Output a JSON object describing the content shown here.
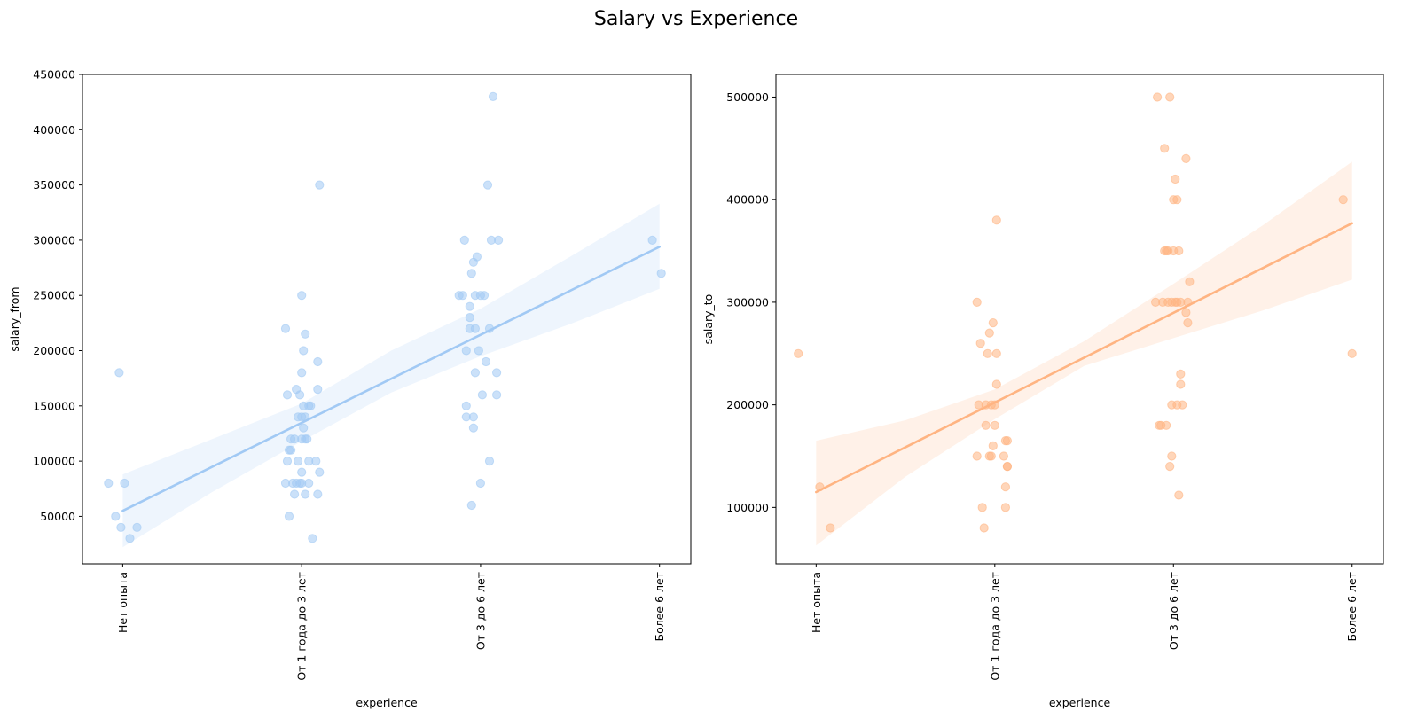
{
  "figure": {
    "title": "Salary vs Experience"
  },
  "chart_data": [
    {
      "type": "scatter",
      "subtype": "regression (regplot) with x-jitter",
      "xlabel": "experience",
      "ylabel": "salary_from",
      "categories": [
        "Нет опыта",
        "От 1 года до 3 лет",
        "От 3 до 6 лет",
        "Более 6 лет"
      ],
      "ylim": [
        7000,
        450000
      ],
      "yticks": [
        50000,
        100000,
        150000,
        200000,
        250000,
        300000,
        350000,
        400000,
        450000
      ],
      "ytick_labels": [
        "50000",
        "100000",
        "150000",
        "200000",
        "250000",
        "300000",
        "350000",
        "400000",
        "450000"
      ],
      "color": "#a1c9f4",
      "grid": false,
      "regression": {
        "x": [
          0,
          3
        ],
        "y": [
          55000,
          294000
        ]
      },
      "confidence_band": {
        "x": [
          0,
          0.5,
          1,
          1.5,
          2,
          2.5,
          3
        ],
        "upper": [
          88000,
          120000,
          152000,
          200000,
          238000,
          285000,
          333000
        ],
        "lower": [
          22000,
          72000,
          118000,
          162000,
          195000,
          224000,
          256000
        ]
      },
      "points": [
        [
          -0.08,
          80000
        ],
        [
          -0.02,
          180000
        ],
        [
          0.01,
          80000
        ],
        [
          -0.04,
          50000
        ],
        [
          -0.01,
          40000
        ],
        [
          0.08,
          40000
        ],
        [
          0.04,
          30000
        ],
        [
          0.91,
          220000
        ],
        [
          0.92,
          160000
        ],
        [
          0.93,
          110000
        ],
        [
          0.92,
          100000
        ],
        [
          0.91,
          80000
        ],
        [
          0.93,
          50000
        ],
        [
          0.95,
          80000
        ],
        [
          0.96,
          120000
        ],
        [
          0.97,
          80000
        ],
        [
          0.98,
          140000
        ],
        [
          0.96,
          70000
        ],
        [
          0.97,
          165000
        ],
        [
          0.98,
          100000
        ],
        [
          0.99,
          80000
        ],
        [
          0.99,
          160000
        ],
        [
          1.0,
          250000
        ],
        [
          1.0,
          180000
        ],
        [
          1.0,
          140000
        ],
        [
          1.0,
          120000
        ],
        [
          1.0,
          90000
        ],
        [
          1.0,
          80000
        ],
        [
          1.01,
          200000
        ],
        [
          1.01,
          150000
        ],
        [
          1.02,
          140000
        ],
        [
          1.01,
          130000
        ],
        [
          1.02,
          120000
        ],
        [
          1.02,
          70000
        ],
        [
          1.02,
          215000
        ],
        [
          1.03,
          120000
        ],
        [
          1.04,
          100000
        ],
        [
          1.04,
          150000
        ],
        [
          1.04,
          80000
        ],
        [
          1.05,
          150000
        ],
        [
          1.06,
          30000
        ],
        [
          1.08,
          100000
        ],
        [
          1.09,
          70000
        ],
        [
          1.09,
          190000
        ],
        [
          1.09,
          165000
        ],
        [
          1.1,
          90000
        ],
        [
          1.1,
          350000
        ],
        [
          0.94,
          110000
        ],
        [
          0.94,
          120000
        ],
        [
          1.88,
          250000
        ],
        [
          1.9,
          250000
        ],
        [
          1.91,
          300000
        ],
        [
          1.92,
          140000
        ],
        [
          1.92,
          200000
        ],
        [
          1.92,
          150000
        ],
        [
          1.94,
          230000
        ],
        [
          1.94,
          240000
        ],
        [
          1.94,
          220000
        ],
        [
          1.95,
          60000
        ],
        [
          1.95,
          270000
        ],
        [
          1.96,
          140000
        ],
        [
          1.96,
          280000
        ],
        [
          1.96,
          130000
        ],
        [
          1.97,
          180000
        ],
        [
          1.97,
          220000
        ],
        [
          1.97,
          250000
        ],
        [
          1.98,
          285000
        ],
        [
          1.99,
          200000
        ],
        [
          2.0,
          250000
        ],
        [
          2.0,
          80000
        ],
        [
          2.01,
          160000
        ],
        [
          2.02,
          250000
        ],
        [
          2.03,
          190000
        ],
        [
          2.04,
          350000
        ],
        [
          2.05,
          220000
        ],
        [
          2.06,
          300000
        ],
        [
          2.07,
          430000
        ],
        [
          2.09,
          180000
        ],
        [
          2.09,
          160000
        ],
        [
          2.1,
          300000
        ],
        [
          2.05,
          100000
        ],
        [
          2.96,
          300000
        ],
        [
          3.01,
          270000
        ]
      ]
    },
    {
      "type": "scatter",
      "subtype": "regression (regplot) with x-jitter",
      "xlabel": "experience",
      "ylabel": "salary_to",
      "categories": [
        "Нет опыта",
        "От 1 года до 3 лет",
        "От 3 до 6 лет",
        "Более 6 лет"
      ],
      "ylim": [
        45000,
        522000
      ],
      "yticks": [
        100000,
        200000,
        300000,
        400000,
        500000
      ],
      "ytick_labels": [
        "100000",
        "200000",
        "300000",
        "400000",
        "500000"
      ],
      "color": "#ffb482",
      "grid": false,
      "regression": {
        "x": [
          0,
          3
        ],
        "y": [
          115000,
          377000
        ]
      },
      "confidence_band": {
        "x": [
          0,
          0.5,
          1,
          1.5,
          2,
          2.5,
          3
        ],
        "upper": [
          165000,
          185000,
          215000,
          262000,
          318000,
          375000,
          437000
        ],
        "lower": [
          63000,
          130000,
          186000,
          238000,
          265000,
          292000,
          322000
        ]
      },
      "points": [
        [
          -0.1,
          250000
        ],
        [
          0.02,
          120000
        ],
        [
          0.08,
          80000
        ],
        [
          0.9,
          150000
        ],
        [
          0.9,
          300000
        ],
        [
          0.91,
          200000
        ],
        [
          0.92,
          260000
        ],
        [
          0.93,
          100000
        ],
        [
          0.94,
          80000
        ],
        [
          0.95,
          200000
        ],
        [
          0.95,
          180000
        ],
        [
          0.96,
          250000
        ],
        [
          0.97,
          150000
        ],
        [
          0.97,
          270000
        ],
        [
          0.98,
          200000
        ],
        [
          0.98,
          150000
        ],
        [
          0.99,
          160000
        ],
        [
          0.99,
          280000
        ],
        [
          1.0,
          180000
        ],
        [
          1.0,
          200000
        ],
        [
          1.01,
          380000
        ],
        [
          1.01,
          250000
        ],
        [
          1.01,
          220000
        ],
        [
          1.05,
          150000
        ],
        [
          1.06,
          120000
        ],
        [
          1.06,
          165000
        ],
        [
          1.06,
          100000
        ],
        [
          1.07,
          140000
        ],
        [
          1.07,
          165000
        ],
        [
          1.07,
          140000
        ],
        [
          1.9,
          300000
        ],
        [
          1.91,
          500000
        ],
        [
          1.92,
          180000
        ],
        [
          1.93,
          180000
        ],
        [
          1.94,
          300000
        ],
        [
          1.95,
          350000
        ],
        [
          1.95,
          450000
        ],
        [
          1.96,
          350000
        ],
        [
          1.96,
          180000
        ],
        [
          1.97,
          350000
        ],
        [
          1.97,
          300000
        ],
        [
          1.98,
          500000
        ],
        [
          1.98,
          140000
        ],
        [
          1.99,
          150000
        ],
        [
          1.99,
          200000
        ],
        [
          1.99,
          300000
        ],
        [
          2.0,
          400000
        ],
        [
          2.0,
          350000
        ],
        [
          2.01,
          420000
        ],
        [
          2.01,
          300000
        ],
        [
          2.02,
          400000
        ],
        [
          2.02,
          200000
        ],
        [
          2.02,
          300000
        ],
        [
          2.03,
          350000
        ],
        [
          2.03,
          112000
        ],
        [
          2.04,
          230000
        ],
        [
          2.04,
          220000
        ],
        [
          2.04,
          300000
        ],
        [
          2.05,
          200000
        ],
        [
          2.07,
          290000
        ],
        [
          2.07,
          440000
        ],
        [
          2.08,
          280000
        ],
        [
          2.08,
          300000
        ],
        [
          2.09,
          320000
        ],
        [
          2.95,
          400000
        ],
        [
          3.0,
          250000
        ]
      ]
    }
  ]
}
